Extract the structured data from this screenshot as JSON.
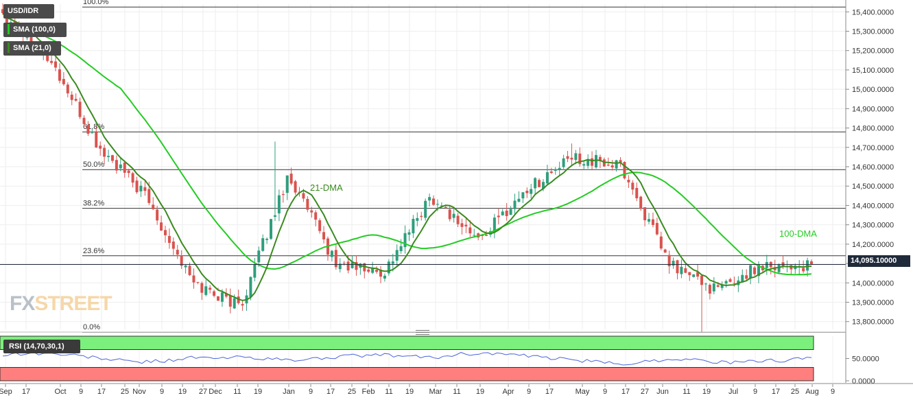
{
  "symbol": "USD/IDR",
  "indicators": {
    "sma100": "SMA (100,0)",
    "sma21": "SMA (21,0)",
    "rsi": "RSI (14,70,30,1)"
  },
  "last_price": "14,095.10000",
  "colors": {
    "up": "#2f9e7c",
    "down": "#d9534f",
    "sma100": "#22cc22",
    "sma21": "#3a8a1f",
    "rsi_line": "#4a64d8",
    "rsi_overbought": "#7cf07c",
    "rsi_oversold": "#ff7f7f"
  },
  "chart_data": {
    "type": "candlestick",
    "ylim": [
      13760,
      15440
    ],
    "price_ticks": [
      "15,400.0000",
      "15,300.0000",
      "15,200.0000",
      "15,100.0000",
      "15,000.0000",
      "14,900.0000",
      "14,800.0000",
      "14,700.0000",
      "14,600.0000",
      "14,500.0000",
      "14,400.0000",
      "14,300.0000",
      "14,200.0000",
      "14,100.0000",
      "14,000.0000",
      "13,900.0000",
      "13,800.0000"
    ],
    "price_tick_values": [
      15400,
      15300,
      15200,
      15100,
      15000,
      14900,
      14800,
      14700,
      14600,
      14500,
      14400,
      14300,
      14200,
      14100,
      14000,
      13900,
      13800
    ],
    "x_ticks": [
      "Sep",
      "17",
      "Oct",
      "9",
      "17",
      "25",
      "Nov",
      "9",
      "19",
      "27",
      "Dec",
      "11",
      "19",
      "Jan",
      "9",
      "17",
      "25",
      "Feb",
      "11",
      "19",
      "Mar",
      "11",
      "19",
      "Apr",
      "9",
      "17",
      "May",
      "9",
      "17",
      "27",
      "Jun",
      "11",
      "19",
      "Jul",
      "9",
      "17",
      "25",
      "Aug",
      "9"
    ],
    "fibonacci": [
      {
        "label": "100.0%",
        "value": 15425
      },
      {
        "label": "61.8%",
        "value": 14780
      },
      {
        "label": "50.0%",
        "value": 14585
      },
      {
        "label": "38.2%",
        "value": 14385
      },
      {
        "label": "23.6%",
        "value": 14140
      },
      {
        "label": "0.0%",
        "value": 13745
      }
    ],
    "annotations": [
      {
        "text": "21-DMA"
      },
      {
        "text": "100-DMA"
      }
    ],
    "key_prices": [
      15400,
      15150,
      14700,
      14450,
      14000,
      13880,
      14560,
      14100,
      14050,
      14450,
      14220,
      14480,
      14650,
      14600,
      14100,
      13960,
      14100,
      14080
    ],
    "rsi": {
      "ticks": [
        "50.0000",
        "0.0000"
      ],
      "tick_values": [
        50,
        0
      ],
      "overbought": 70,
      "oversold": 30,
      "values": [
        58,
        62,
        60,
        55,
        48,
        42,
        45,
        52,
        50,
        54,
        48,
        46,
        52,
        56,
        58,
        55,
        52,
        60,
        62,
        58,
        52,
        48,
        42,
        38,
        44,
        50,
        45,
        40,
        44,
        46,
        52
      ]
    }
  }
}
